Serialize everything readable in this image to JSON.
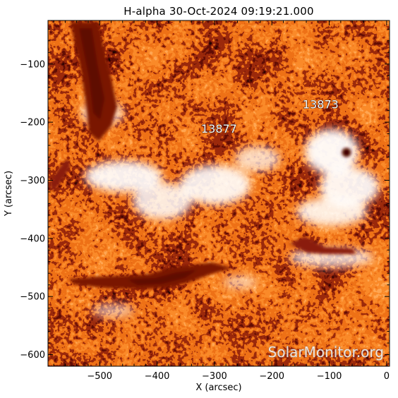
{
  "chart_data": {
    "type": "heatmap",
    "title": "H-alpha 30-Oct-2024 09:19:21.000",
    "xlabel": "X (arcsec)",
    "ylabel": "Y (arcsec)",
    "xlim": [
      -590,
      5
    ],
    "ylim": [
      -620,
      -25
    ],
    "x_ticks": [
      -500,
      -400,
      -300,
      -200,
      -100,
      0
    ],
    "y_ticks": [
      -600,
      -500,
      -400,
      -300,
      -200,
      -100
    ],
    "x_tick_labels": [
      "−500",
      "−400",
      "−300",
      "−200",
      "−100",
      "0"
    ],
    "y_tick_labels": [
      "−600",
      "−500",
      "−400",
      "−300",
      "−200",
      "−100"
    ],
    "colormap": [
      "#ffffff",
      "#ffd2a0",
      "#ff9430",
      "#f07218",
      "#a8300c",
      "#6e0e04",
      "#000000"
    ],
    "active_regions": [
      {
        "label": "13877",
        "x": -292,
        "y": -218
      },
      {
        "label": "13873",
        "x": -115,
        "y": -176
      }
    ],
    "watermark": "SolarMonitor.org"
  }
}
